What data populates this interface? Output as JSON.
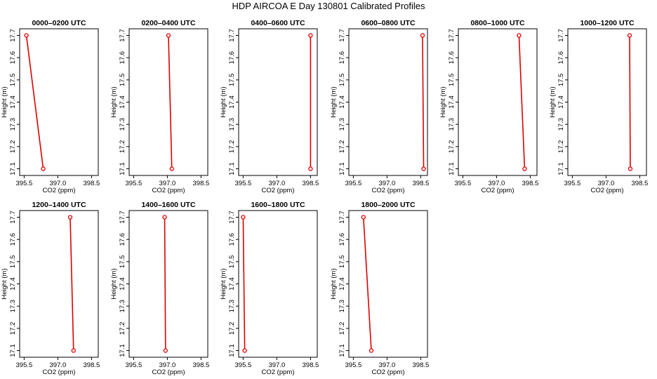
{
  "title": "HDP AIRCOA E  Day 130801  Calibrated Profiles",
  "chart_data": [
    {
      "type": "line",
      "title": "0000–0200 UTC",
      "xlabel": "CO2 (ppm)",
      "ylabel": "Height (m)",
      "xlim": [
        395.3,
        398.8
      ],
      "ylim": [
        17.07,
        17.73
      ],
      "xticks": [
        "395.5",
        "397.0",
        "398.5"
      ],
      "yticks": [
        "17.1",
        "17.2",
        "17.3",
        "17.4",
        "17.5",
        "17.6",
        "17.7"
      ],
      "x": [
        395.6,
        396.35
      ],
      "y": [
        17.7,
        17.1
      ],
      "color": "#dd0000"
    },
    {
      "type": "line",
      "title": "0200–0400 UTC",
      "xlabel": "CO2 (ppm)",
      "ylabel": "Height (m)",
      "xlim": [
        395.3,
        398.8
      ],
      "ylim": [
        17.07,
        17.73
      ],
      "xticks": [
        "395.5",
        "397.0",
        "398.5"
      ],
      "yticks": [
        "17.1",
        "17.2",
        "17.3",
        "17.4",
        "17.5",
        "17.6",
        "17.7"
      ],
      "x": [
        397.05,
        397.2
      ],
      "y": [
        17.7,
        17.1
      ],
      "color": "#dd0000"
    },
    {
      "type": "line",
      "title": "0400–0600 UTC",
      "xlabel": "CO2 (ppm)",
      "ylabel": "Height (m)",
      "xlim": [
        395.3,
        398.8
      ],
      "ylim": [
        17.07,
        17.73
      ],
      "xticks": [
        "395.5",
        "397.0",
        "398.5"
      ],
      "yticks": [
        "17.1",
        "17.2",
        "17.3",
        "17.4",
        "17.5",
        "17.6",
        "17.7"
      ],
      "x": [
        398.5,
        398.5
      ],
      "y": [
        17.7,
        17.1
      ],
      "color": "#dd0000"
    },
    {
      "type": "line",
      "title": "0600–0800 UTC",
      "xlabel": "CO2 (ppm)",
      "ylabel": "Height (m)",
      "xlim": [
        395.3,
        398.8
      ],
      "ylim": [
        17.07,
        17.73
      ],
      "xticks": [
        "395.5",
        "397.0",
        "398.5"
      ],
      "yticks": [
        "17.1",
        "17.2",
        "17.3",
        "17.4",
        "17.5",
        "17.6",
        "17.7"
      ],
      "x": [
        398.58,
        398.63
      ],
      "y": [
        17.7,
        17.1
      ],
      "color": "#dd0000"
    },
    {
      "type": "line",
      "title": "0800–1000 UTC",
      "xlabel": "CO2 (ppm)",
      "ylabel": "Height (m)",
      "xlim": [
        395.3,
        398.8
      ],
      "ylim": [
        17.07,
        17.73
      ],
      "xticks": [
        "395.5",
        "397.0",
        "398.5"
      ],
      "yticks": [
        "17.1",
        "17.2",
        "17.3",
        "17.4",
        "17.5",
        "17.6",
        "17.7"
      ],
      "x": [
        398.0,
        398.25
      ],
      "y": [
        17.7,
        17.1
      ],
      "color": "#dd0000"
    },
    {
      "type": "line",
      "title": "1000–1200 UTC",
      "xlabel": "CO2 (ppm)",
      "ylabel": "Height (m)",
      "xlim": [
        395.3,
        398.8
      ],
      "ylim": [
        17.07,
        17.73
      ],
      "xticks": [
        "395.5",
        "397.0",
        "398.5"
      ],
      "yticks": [
        "17.1",
        "17.2",
        "17.3",
        "17.4",
        "17.5",
        "17.6",
        "17.7"
      ],
      "x": [
        398.05,
        398.08
      ],
      "y": [
        17.7,
        17.1
      ],
      "color": "#dd0000"
    },
    {
      "type": "line",
      "title": "1200–1400 UTC",
      "xlabel": "CO2 (ppm)",
      "ylabel": "Height (m)",
      "xlim": [
        395.3,
        398.8
      ],
      "ylim": [
        17.07,
        17.73
      ],
      "xticks": [
        "395.5",
        "397.0",
        "398.5"
      ],
      "yticks": [
        "17.1",
        "17.2",
        "17.3",
        "17.4",
        "17.5",
        "17.6",
        "17.7"
      ],
      "x": [
        397.55,
        397.7
      ],
      "y": [
        17.7,
        17.1
      ],
      "color": "#dd0000"
    },
    {
      "type": "line",
      "title": "1400–1600 UTC",
      "xlabel": "CO2 (ppm)",
      "ylabel": "Height (m)",
      "xlim": [
        395.3,
        398.8
      ],
      "ylim": [
        17.07,
        17.73
      ],
      "xticks": [
        "395.5",
        "397.0",
        "398.5"
      ],
      "yticks": [
        "17.1",
        "17.2",
        "17.3",
        "17.4",
        "17.5",
        "17.6",
        "17.7"
      ],
      "x": [
        396.88,
        396.92
      ],
      "y": [
        17.7,
        17.1
      ],
      "color": "#dd0000"
    },
    {
      "type": "line",
      "title": "1600–1800 UTC",
      "xlabel": "CO2 (ppm)",
      "ylabel": "Height (m)",
      "xlim": [
        395.3,
        398.8
      ],
      "ylim": [
        17.07,
        17.73
      ],
      "xticks": [
        "395.5",
        "397.0",
        "398.5"
      ],
      "yticks": [
        "17.1",
        "17.2",
        "17.3",
        "17.4",
        "17.5",
        "17.6",
        "17.7"
      ],
      "x": [
        395.5,
        395.57
      ],
      "y": [
        17.7,
        17.1
      ],
      "color": "#dd0000"
    },
    {
      "type": "line",
      "title": "1800–2000 UTC",
      "xlabel": "CO2 (ppm)",
      "ylabel": "Height (m)",
      "xlim": [
        395.3,
        398.8
      ],
      "ylim": [
        17.07,
        17.73
      ],
      "xticks": [
        "395.5",
        "397.0",
        "398.5"
      ],
      "yticks": [
        "17.1",
        "17.2",
        "17.3",
        "17.4",
        "17.5",
        "17.6",
        "17.7"
      ],
      "x": [
        395.95,
        396.3
      ],
      "y": [
        17.7,
        17.1
      ],
      "color": "#dd0000"
    }
  ]
}
